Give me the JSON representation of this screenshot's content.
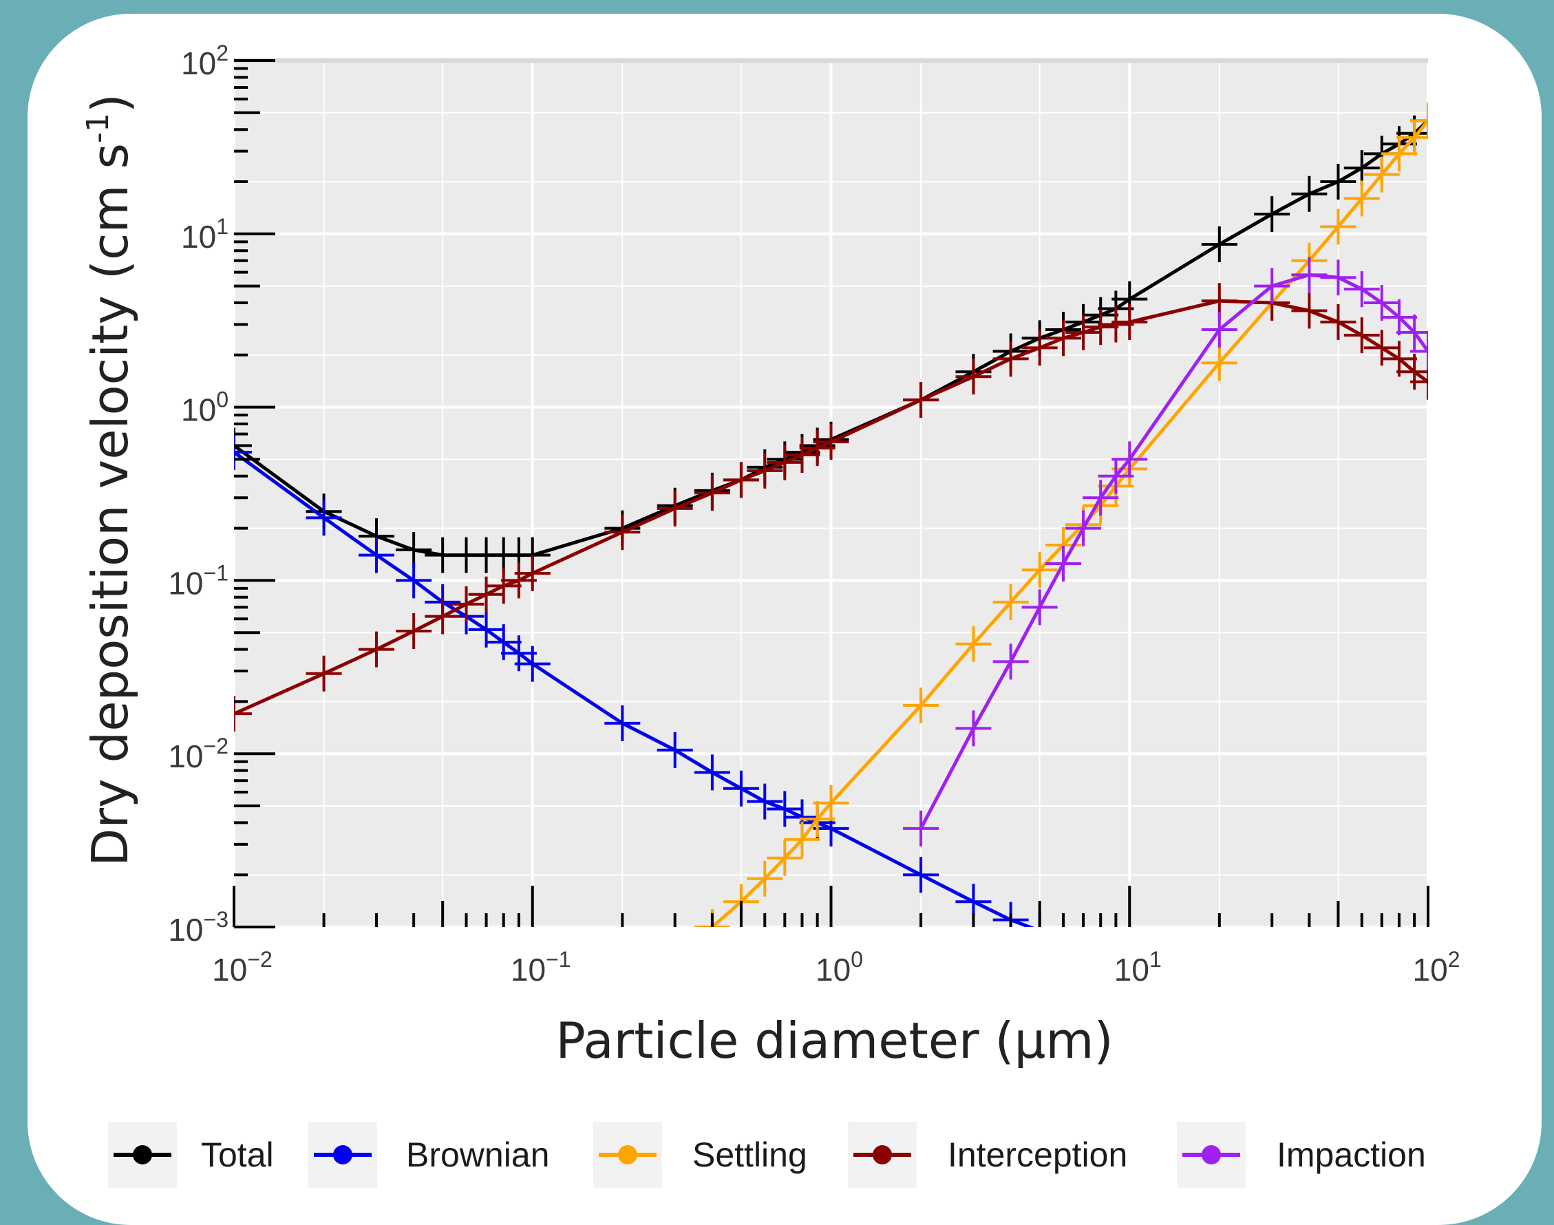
{
  "chart_data": {
    "type": "line",
    "title": "",
    "xlabel": "Particle diameter (μm)",
    "ylabel_main": "Dry deposition velocity (cm s",
    "ylabel_sup": "-1",
    "ylabel_close": ")",
    "x_scale": "log",
    "y_scale": "log",
    "xlim": [
      0.01,
      100
    ],
    "ylim": [
      0.001,
      100
    ],
    "grid": true,
    "legend_position": "bottom",
    "x_ticks": [
      {
        "base": "10",
        "exp": "−2"
      },
      {
        "base": "10",
        "exp": "−1"
      },
      {
        "base": "10",
        "exp": "0"
      },
      {
        "base": "10",
        "exp": "1"
      },
      {
        "base": "10",
        "exp": "2"
      }
    ],
    "y_ticks": [
      {
        "base": "10",
        "exp": "−3"
      },
      {
        "base": "10",
        "exp": "−2"
      },
      {
        "base": "10",
        "exp": "−1"
      },
      {
        "base": "10",
        "exp": "0"
      },
      {
        "base": "10",
        "exp": "1"
      },
      {
        "base": "10",
        "exp": "2"
      }
    ],
    "x": [
      0.01,
      0.02,
      0.03,
      0.04,
      0.05,
      0.06,
      0.07,
      0.08,
      0.09,
      0.1,
      0.2,
      0.3,
      0.4,
      0.5,
      0.6,
      0.7,
      0.8,
      0.9,
      1,
      2,
      3,
      4,
      5,
      6,
      7,
      8,
      9,
      10,
      20,
      30,
      40,
      50,
      60,
      70,
      80,
      90,
      100
    ],
    "series": [
      {
        "name": "Total",
        "color": "#000000",
        "values": [
          0.6,
          0.25,
          0.18,
          0.15,
          0.14,
          0.14,
          0.14,
          0.14,
          0.14,
          0.14,
          0.2,
          0.27,
          0.33,
          0.38,
          0.45,
          0.5,
          0.55,
          0.6,
          0.65,
          1.1,
          1.6,
          2.1,
          2.5,
          2.8,
          3.1,
          3.4,
          3.7,
          4.2,
          8.7,
          13,
          17,
          20,
          24,
          29,
          33,
          38,
          45
        ]
      },
      {
        "name": "Brownian",
        "color": "#0000ee",
        "values": [
          0.55,
          0.23,
          0.14,
          0.1,
          0.075,
          0.062,
          0.052,
          0.044,
          0.038,
          0.033,
          0.015,
          0.0105,
          0.0078,
          0.0063,
          0.0053,
          0.0048,
          0.0043,
          0.004,
          0.0037,
          0.002,
          0.0014,
          0.0011,
          0.00095,
          null,
          null,
          null,
          null,
          null,
          null,
          null,
          null,
          null,
          null,
          null,
          null,
          null,
          null
        ]
      },
      {
        "name": "Settling",
        "color": "#ffa500",
        "values": [
          null,
          null,
          null,
          null,
          null,
          null,
          null,
          null,
          null,
          null,
          null,
          null,
          0.001,
          0.0014,
          0.0019,
          0.0025,
          0.0032,
          0.0042,
          0.0052,
          0.019,
          0.043,
          0.075,
          0.115,
          0.16,
          0.21,
          0.27,
          0.35,
          0.44,
          1.8,
          4,
          7,
          11,
          16,
          22,
          29,
          36,
          45
        ]
      },
      {
        "name": "Interception",
        "color": "#8b0000",
        "values": [
          0.017,
          0.029,
          0.04,
          0.051,
          0.062,
          0.073,
          0.083,
          0.093,
          0.1,
          0.11,
          0.19,
          0.26,
          0.32,
          0.38,
          0.43,
          0.48,
          0.53,
          0.58,
          0.63,
          1.1,
          1.5,
          1.9,
          2.2,
          2.5,
          2.7,
          2.9,
          3.0,
          3.1,
          4.1,
          4.0,
          3.6,
          3.1,
          2.6,
          2.2,
          1.9,
          1.6,
          1.4
        ]
      },
      {
        "name": "Impaction",
        "color": "#a020f0",
        "values": [
          null,
          null,
          null,
          null,
          null,
          null,
          null,
          null,
          null,
          null,
          null,
          null,
          null,
          null,
          null,
          null,
          null,
          null,
          null,
          0.0037,
          0.014,
          0.034,
          0.07,
          0.125,
          0.2,
          0.3,
          0.4,
          0.5,
          2.8,
          5,
          5.8,
          5.6,
          4.8,
          4,
          3.3,
          2.7,
          2.1
        ]
      }
    ]
  }
}
